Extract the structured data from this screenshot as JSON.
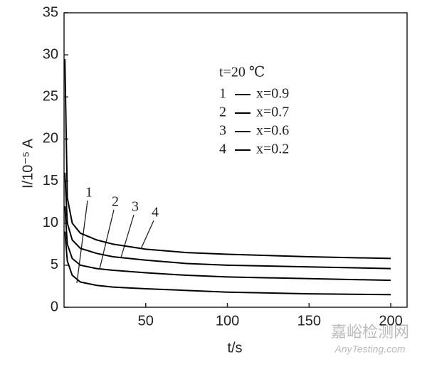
{
  "chart_data": {
    "type": "line",
    "x_label": "t/s",
    "y_label": "I/10⁻⁵ A",
    "annotation": "t=20 ℃",
    "x": [
      0.5,
      2,
      5,
      10,
      20,
      30,
      50,
      75,
      100,
      150,
      200
    ],
    "series": [
      {
        "name": "x=0.9",
        "label": "1",
        "color": "#000000",
        "values": [
          9,
          5.5,
          3.8,
          3.0,
          2.6,
          2.4,
          2.2,
          2.0,
          1.8,
          1.6,
          1.5
        ]
      },
      {
        "name": "x=0.7",
        "label": "2",
        "color": "#000000",
        "values": [
          12,
          7.5,
          5.8,
          5.0,
          4.6,
          4.4,
          4.1,
          3.8,
          3.6,
          3.4,
          3.2
        ]
      },
      {
        "name": "x=0.6",
        "label": "3",
        "color": "#000000",
        "values": [
          16,
          10,
          8,
          7,
          6.4,
          6,
          5.6,
          5.2,
          5.0,
          4.8,
          4.6
        ]
      },
      {
        "name": "x=0.2",
        "label": "4",
        "color": "#000000",
        "values": [
          29.5,
          13,
          10,
          8.8,
          8,
          7.5,
          6.9,
          6.5,
          6.3,
          6.0,
          5.8
        ]
      }
    ],
    "xlim": [
      0,
      210
    ],
    "ylim": [
      0,
      35
    ],
    "xticks": [
      50,
      100,
      150,
      200
    ],
    "yticks": [
      0,
      5,
      10,
      15,
      20,
      25,
      30,
      35
    ],
    "watermark": [
      "嘉峪检测网",
      "AnyTesting.com"
    ]
  }
}
